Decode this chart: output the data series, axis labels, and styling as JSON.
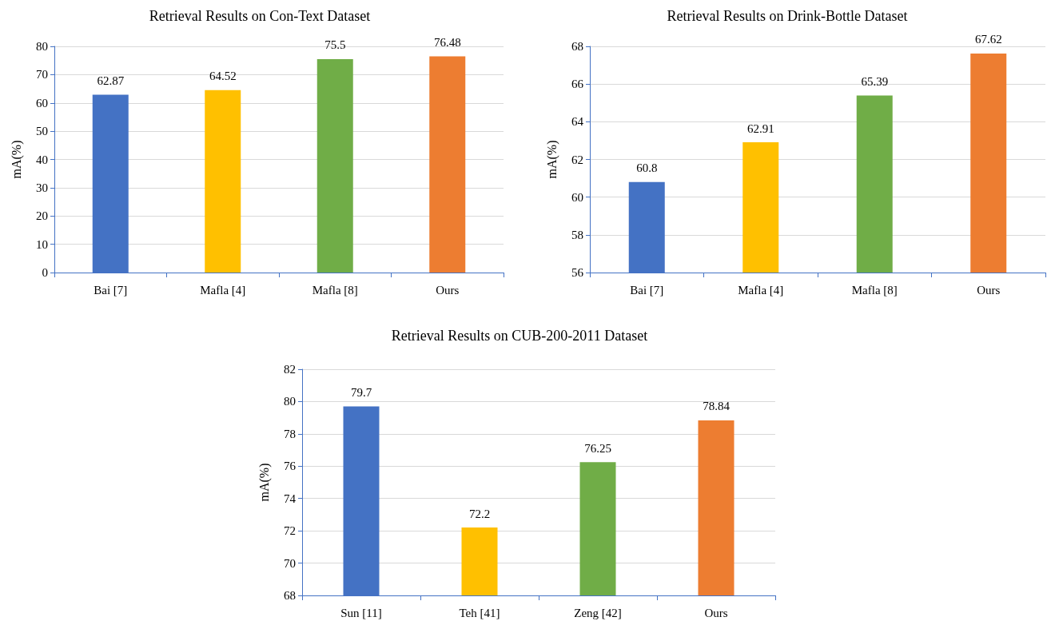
{
  "chart_data": [
    {
      "type": "bar",
      "title": "Retrieval Results on Con-Text Dataset",
      "ylabel": "mA(%)",
      "categories": [
        "Bai [7]",
        "Mafla [4]",
        "Mafla [8]",
        "Ours"
      ],
      "values": [
        62.87,
        64.52,
        75.5,
        76.48
      ],
      "colors": [
        "#4472c4",
        "#ffc000",
        "#70ad47",
        "#ed7d31"
      ],
      "ylim": [
        0,
        80
      ],
      "yticks": [
        0,
        10,
        20,
        30,
        40,
        50,
        60,
        70,
        80
      ],
      "grid": "y",
      "data_labels": true
    },
    {
      "type": "bar",
      "title": "Retrieval Results on Drink-Bottle Dataset",
      "ylabel": "mA(%)",
      "categories": [
        "Bai [7]",
        "Mafla [4]",
        "Mafla [8]",
        "Ours"
      ],
      "values": [
        60.8,
        62.91,
        65.39,
        67.62
      ],
      "colors": [
        "#4472c4",
        "#ffc000",
        "#70ad47",
        "#ed7d31"
      ],
      "ylim": [
        56,
        68
      ],
      "yticks": [
        56,
        58,
        60,
        62,
        64,
        66,
        68
      ],
      "grid": "y",
      "data_labels": true
    },
    {
      "type": "bar",
      "title": "Retrieval Results on CUB-200-2011 Dataset",
      "ylabel": "mA(%)",
      "categories": [
        "Sun [11]",
        "Teh [41]",
        "Zeng [42]",
        "Ours"
      ],
      "values": [
        79.7,
        72.2,
        76.25,
        78.84
      ],
      "colors": [
        "#4472c4",
        "#ffc000",
        "#70ad47",
        "#ed7d31"
      ],
      "ylim": [
        68,
        82
      ],
      "yticks": [
        68,
        70,
        72,
        74,
        76,
        78,
        80,
        82
      ],
      "grid": "y",
      "data_labels": true
    }
  ]
}
